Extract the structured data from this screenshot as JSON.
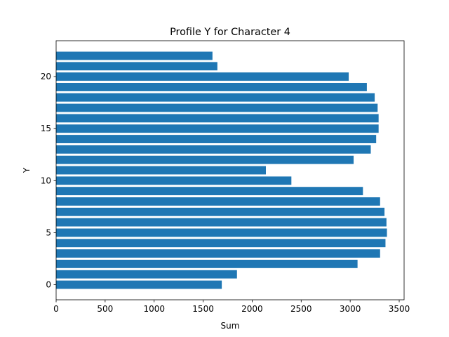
{
  "chart_data": {
    "type": "bar",
    "orientation": "horizontal",
    "title": "Profile Y for Character 4",
    "xlabel": "Sum",
    "ylabel": "Y",
    "categories": [
      0,
      1,
      2,
      3,
      4,
      5,
      6,
      7,
      8,
      9,
      10,
      11,
      12,
      13,
      14,
      15,
      16,
      17,
      18,
      19,
      20,
      21,
      22
    ],
    "values": [
      1690,
      1845,
      3075,
      3305,
      3360,
      3375,
      3370,
      3350,
      3305,
      3130,
      2400,
      2140,
      3035,
      3210,
      3265,
      3290,
      3290,
      3280,
      3250,
      3170,
      2985,
      1645,
      1595
    ],
    "xlim": [
      0,
      3550
    ],
    "ylim": [
      -1.45,
      23.45
    ],
    "xticks": [
      0,
      500,
      1000,
      1500,
      2000,
      2500,
      3000,
      3500
    ],
    "yticks": [
      0,
      5,
      10,
      15,
      20
    ],
    "bar_height": 0.8,
    "bar_color": "#1f77b4",
    "grid": false,
    "legend": "none"
  }
}
